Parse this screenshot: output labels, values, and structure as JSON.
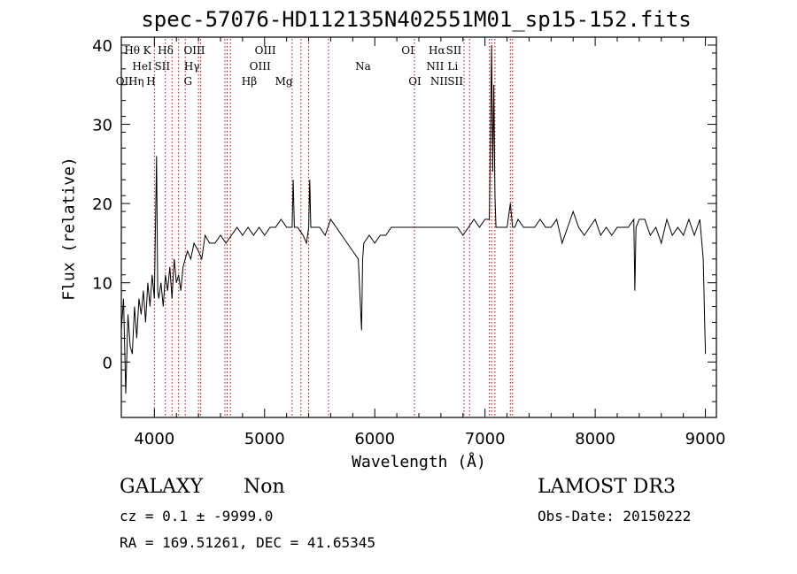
{
  "chart_data": {
    "type": "line",
    "title": "spec-57076-HD112135N402551M01_sp15-152.fits",
    "xlabel": "Wavelength (Å)",
    "ylabel": "Flux (relative)",
    "xlim": [
      3700,
      9100
    ],
    "ylim": [
      -7,
      41
    ],
    "xticks": [
      4000,
      5000,
      6000,
      7000,
      8000,
      9000
    ],
    "yticks": [
      0,
      10,
      20,
      30,
      40
    ],
    "series": [
      {
        "name": "spectrum",
        "x": [
          3700,
          3720,
          3740,
          3760,
          3780,
          3800,
          3820,
          3840,
          3860,
          3880,
          3900,
          3920,
          3940,
          3960,
          3980,
          4000,
          4020,
          4030,
          4040,
          4060,
          4080,
          4100,
          4120,
          4140,
          4160,
          4180,
          4200,
          4220,
          4240,
          4260,
          4280,
          4300,
          4330,
          4360,
          4400,
          4430,
          4460,
          4500,
          4550,
          4600,
          4650,
          4700,
          4750,
          4800,
          4850,
          4900,
          4950,
          5000,
          5050,
          5100,
          5150,
          5200,
          5250,
          5260,
          5270,
          5300,
          5350,
          5380,
          5400,
          5410,
          5420,
          5450,
          5500,
          5550,
          5600,
          5650,
          5700,
          5750,
          5800,
          5850,
          5880,
          5890,
          5900,
          5950,
          6000,
          6050,
          6100,
          6150,
          6200,
          6250,
          6300,
          6350,
          6400,
          6450,
          6500,
          6550,
          6600,
          6650,
          6700,
          6750,
          6800,
          6850,
          6900,
          6950,
          7000,
          7040,
          7060,
          7070,
          7080,
          7090,
          7100,
          7150,
          7200,
          7230,
          7250,
          7270,
          7300,
          7350,
          7400,
          7450,
          7500,
          7550,
          7600,
          7650,
          7700,
          7750,
          7800,
          7850,
          7900,
          7950,
          8000,
          8050,
          8100,
          8150,
          8200,
          8250,
          8300,
          8350,
          8360,
          8370,
          8400,
          8450,
          8500,
          8550,
          8600,
          8650,
          8700,
          8750,
          8800,
          8850,
          8900,
          8950,
          8980,
          9000
        ],
        "values": [
          4,
          8,
          -4,
          6,
          2,
          1,
          7,
          3,
          8,
          6,
          9,
          5,
          10,
          7,
          11,
          8,
          26,
          9,
          8,
          10,
          7,
          11,
          9,
          12,
          8,
          13,
          10,
          11,
          9,
          12,
          13,
          14,
          13,
          15,
          14,
          13,
          16,
          15,
          15,
          16,
          15,
          16,
          17,
          16,
          17,
          16,
          17,
          16,
          17,
          17,
          18,
          17,
          17,
          23,
          17,
          17,
          16,
          15,
          17,
          23,
          17,
          17,
          17,
          16,
          18,
          17,
          16,
          15,
          14,
          13,
          4,
          13,
          15,
          16,
          15,
          16,
          16,
          17,
          17,
          17,
          17,
          17,
          17,
          17,
          17,
          17,
          17,
          17,
          17,
          17,
          16,
          17,
          18,
          17,
          18,
          18,
          40,
          24,
          35,
          21,
          17,
          17,
          17,
          20,
          17,
          17,
          18,
          17,
          17,
          17,
          18,
          17,
          17,
          18,
          15,
          17,
          19,
          17,
          16,
          17,
          18,
          16,
          17,
          16,
          17,
          17,
          17,
          18,
          9,
          17,
          18,
          18,
          16,
          17,
          15,
          18,
          16,
          17,
          16,
          18,
          16,
          18,
          13,
          1
        ]
      }
    ],
    "line_annotations": [
      {
        "label": "OII",
        "wavelength": 3727,
        "row": 3
      },
      {
        "label": "Hθ",
        "wavelength": 3798,
        "row": 1
      },
      {
        "label": "Hη",
        "wavelength": 3835,
        "row": 3
      },
      {
        "label": "HeI",
        "wavelength": 3889,
        "row": 2
      },
      {
        "label": "K",
        "wavelength": 3934,
        "row": 1
      },
      {
        "label": "H",
        "wavelength": 3969,
        "row": 3
      },
      {
        "label": "Hδ",
        "wavelength": 4102,
        "row": 1
      },
      {
        "label": "SII",
        "wavelength": 4072,
        "row": 2
      },
      {
        "label": "OIII",
        "wavelength": 4363,
        "row": 1
      },
      {
        "label": "Hγ",
        "wavelength": 4340,
        "row": 2
      },
      {
        "label": "G",
        "wavelength": 4305,
        "row": 3
      },
      {
        "label": "Hβ",
        "wavelength": 4861,
        "row": 3
      },
      {
        "label": "OIII",
        "wavelength": 4959,
        "row": 2
      },
      {
        "label": "OIII",
        "wavelength": 5007,
        "row": 1
      },
      {
        "label": "Mg",
        "wavelength": 5175,
        "row": 3
      },
      {
        "label": "Na",
        "wavelength": 5893,
        "row": 2
      },
      {
        "label": "OI",
        "wavelength": 6300,
        "row": 1
      },
      {
        "label": "OI",
        "wavelength": 6364,
        "row": 3
      },
      {
        "label": "Hα",
        "wavelength": 6563,
        "row": 1
      },
      {
        "label": "NII",
        "wavelength": 6548,
        "row": 2
      },
      {
        "label": "NII",
        "wavelength": 6584,
        "row": 3
      },
      {
        "label": "SII",
        "wavelength": 6717,
        "row": 1
      },
      {
        "label": "Li",
        "wavelength": 6708,
        "row": 2
      },
      {
        "label": "SII",
        "wavelength": 6731,
        "row": 3
      }
    ],
    "vlines": [
      4000,
      4100,
      4160,
      4220,
      4280,
      4400,
      4420,
      4640,
      4660,
      4690,
      5250,
      5330,
      5400,
      5580,
      6360,
      6810,
      6860,
      7040,
      7060,
      7090,
      7230,
      7250
    ]
  },
  "info": {
    "class": "GALAXY",
    "subclass": "Non",
    "survey": "LAMOST DR3",
    "cz": "cz = 0.1 ± -9999.0",
    "obs_date": "Obs-Date: 20150222",
    "radec": "RA = 169.51261, DEC =  41.65345"
  }
}
